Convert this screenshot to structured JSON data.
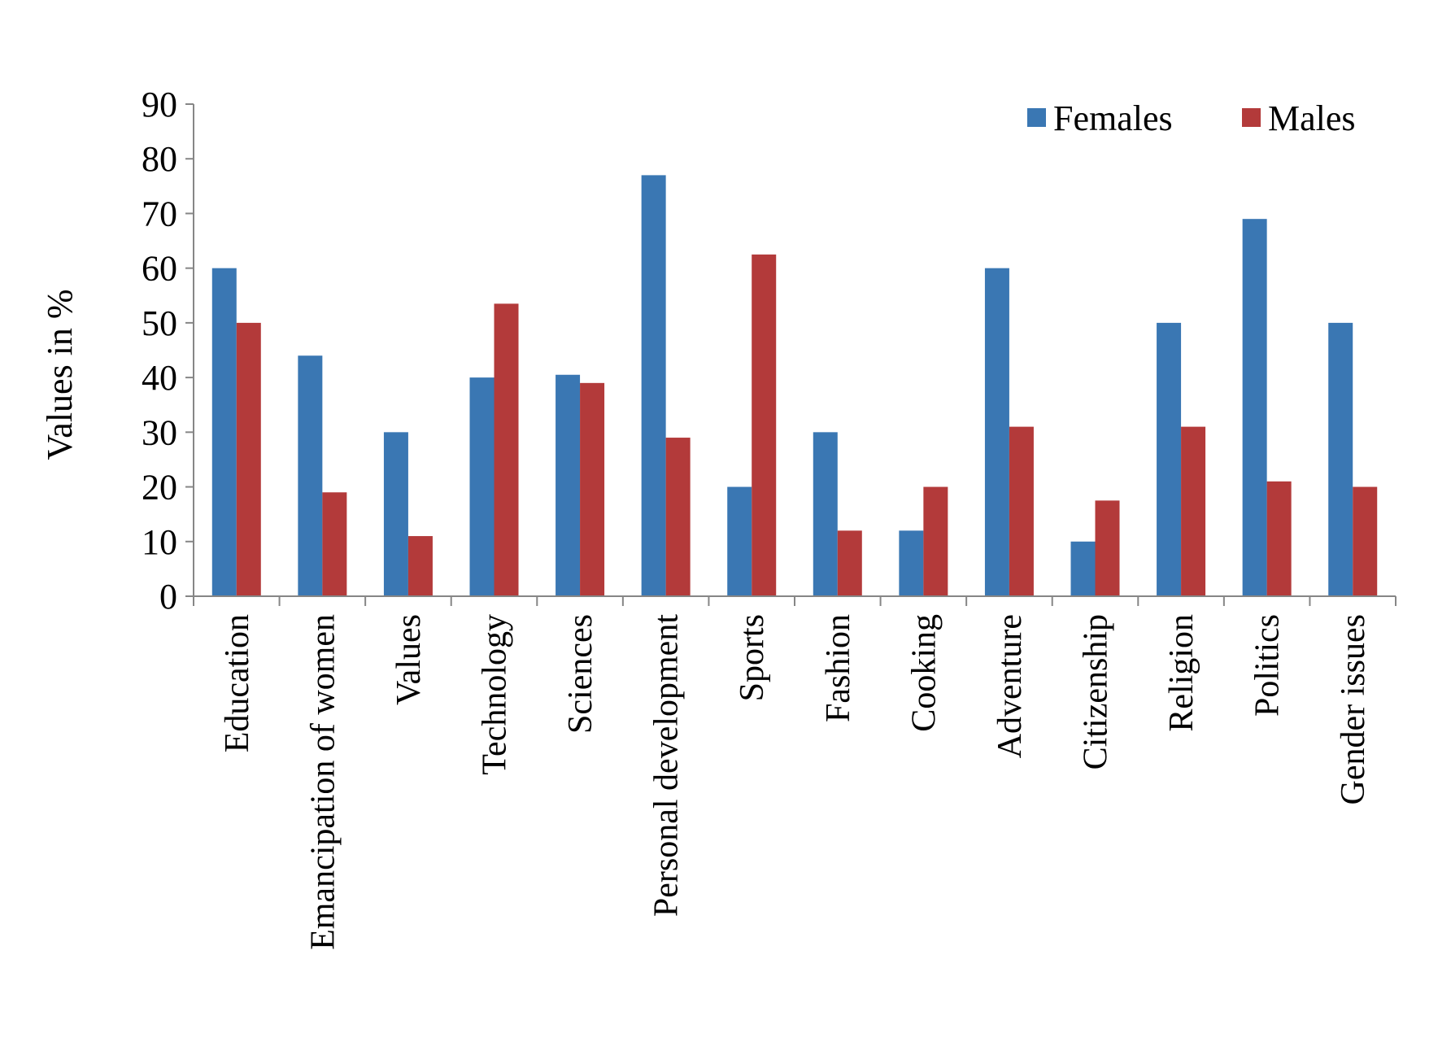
{
  "chart_data": {
    "type": "bar",
    "title": "",
    "xlabel": "",
    "ylabel": "Values in %",
    "ylim": [
      0,
      90
    ],
    "yticks": [
      0,
      10,
      20,
      30,
      40,
      50,
      60,
      70,
      80,
      90
    ],
    "grid": false,
    "legend_position": "top-right",
    "categories": [
      "Education",
      "Emancipation of women",
      "Values",
      "Technology",
      "Sciences",
      "Personal development",
      "Sports",
      "Fashion",
      "Cooking",
      "Adventure",
      "Citizenship",
      "Religion",
      "Politics",
      "Gender issues"
    ],
    "series": [
      {
        "name": "Females",
        "color": "#3A77B3",
        "values": [
          60,
          44,
          30,
          40,
          40.5,
          77,
          20,
          30,
          12,
          60,
          10,
          50,
          69,
          50
        ]
      },
      {
        "name": "Males",
        "color": "#B33A3A",
        "values": [
          50,
          19,
          11,
          53.5,
          39,
          29,
          62.5,
          12,
          20,
          31,
          17.5,
          31,
          21,
          20
        ]
      }
    ]
  }
}
